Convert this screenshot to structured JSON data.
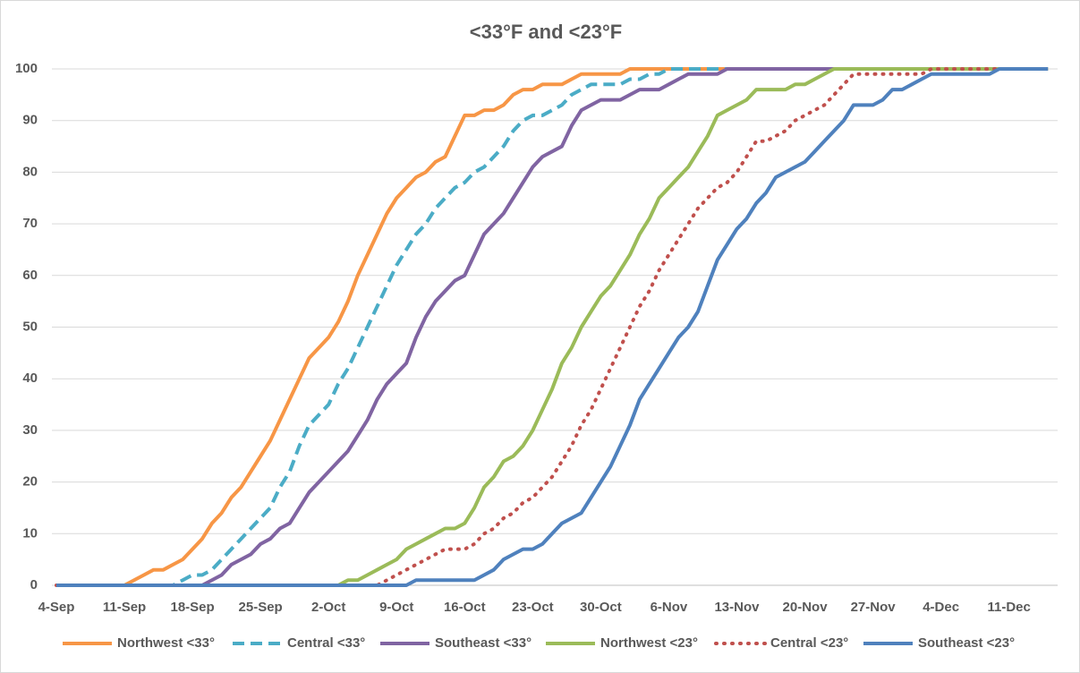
{
  "chart_data": {
    "type": "line",
    "title": "<33°F and <23°F",
    "categories": [
      "4-Sep",
      null,
      null,
      null,
      null,
      null,
      null,
      "11-Sep",
      null,
      null,
      null,
      null,
      null,
      null,
      "18-Sep",
      null,
      null,
      null,
      null,
      null,
      null,
      "25-Sep",
      null,
      null,
      null,
      null,
      null,
      null,
      "2-Oct",
      null,
      null,
      null,
      null,
      null,
      null,
      "9-Oct",
      null,
      null,
      null,
      null,
      null,
      null,
      "16-Oct",
      null,
      null,
      null,
      null,
      null,
      null,
      "23-Oct",
      null,
      null,
      null,
      null,
      null,
      null,
      "30-Oct",
      null,
      null,
      null,
      null,
      null,
      null,
      "6-Nov",
      null,
      null,
      null,
      null,
      null,
      null,
      "13-Nov",
      null,
      null,
      null,
      null,
      null,
      null,
      "20-Nov",
      null,
      null,
      null,
      null,
      null,
      null,
      "27-Nov",
      null,
      null,
      null,
      null,
      null,
      null,
      "4-Dec",
      null,
      null,
      null,
      null,
      null,
      null,
      "11-Dec",
      null,
      null,
      null,
      null
    ],
    "series": [
      {
        "name": "Northwest <33°",
        "color": "#f79646",
        "dash": "solid",
        "values": [
          0,
          0,
          0,
          0,
          0,
          0,
          0,
          0,
          1,
          2,
          3,
          3,
          4,
          5,
          7,
          9,
          12,
          14,
          17,
          19,
          22,
          25,
          28,
          32,
          36,
          40,
          44,
          46,
          48,
          51,
          55,
          60,
          64,
          68,
          72,
          75,
          77,
          79,
          80,
          82,
          83,
          87,
          91,
          91,
          92,
          92,
          93,
          95,
          96,
          96,
          97,
          97,
          97,
          98,
          99,
          99,
          99,
          99,
          99,
          100,
          100,
          100,
          100,
          100,
          100,
          100,
          100,
          100,
          100,
          100,
          100,
          100,
          100,
          100,
          100,
          100,
          100,
          100,
          100,
          100,
          100,
          100,
          100,
          100,
          100,
          100,
          100,
          100,
          100,
          100,
          100,
          100,
          100,
          100,
          100,
          100,
          100,
          100,
          100,
          100,
          100,
          100,
          100
        ]
      },
      {
        "name": "Central <33°",
        "color": "#4bacc6",
        "dash": "dashed",
        "values": [
          0,
          0,
          0,
          0,
          0,
          0,
          0,
          0,
          0,
          0,
          0,
          0,
          0,
          1,
          2,
          2,
          3,
          5,
          7,
          9,
          11,
          13,
          15,
          19,
          22,
          27,
          31,
          33,
          35,
          39,
          42,
          46,
          50,
          54,
          58,
          62,
          65,
          68,
          70,
          73,
          75,
          77,
          78,
          80,
          81,
          83,
          85,
          88,
          90,
          91,
          91,
          92,
          93,
          95,
          96,
          97,
          97,
          97,
          97,
          98,
          98,
          99,
          99,
          100,
          100,
          100,
          100,
          100,
          100,
          100,
          100,
          100,
          100,
          100,
          100,
          100,
          100,
          100,
          100,
          100,
          100,
          100,
          100,
          100,
          100,
          100,
          100,
          100,
          100,
          100,
          100,
          100,
          100,
          100,
          100,
          100,
          100,
          100,
          100,
          100,
          100,
          100,
          100
        ]
      },
      {
        "name": "Southeast <33°",
        "color": "#8064a2",
        "dash": "solid",
        "values": [
          0,
          0,
          0,
          0,
          0,
          0,
          0,
          0,
          0,
          0,
          0,
          0,
          0,
          0,
          0,
          0,
          1,
          2,
          4,
          5,
          6,
          8,
          9,
          11,
          12,
          15,
          18,
          20,
          22,
          24,
          26,
          29,
          32,
          36,
          39,
          41,
          43,
          48,
          52,
          55,
          57,
          59,
          60,
          64,
          68,
          70,
          72,
          75,
          78,
          81,
          83,
          84,
          85,
          89,
          92,
          93,
          94,
          94,
          94,
          95,
          96,
          96,
          96,
          97,
          98,
          99,
          99,
          99,
          99,
          100,
          100,
          100,
          100,
          100,
          100,
          100,
          100,
          100,
          100,
          100,
          100,
          100,
          100,
          100,
          100,
          100,
          100,
          100,
          100,
          100,
          100,
          100,
          100,
          100,
          100,
          100,
          100,
          100,
          100,
          100,
          100,
          100,
          100
        ]
      },
      {
        "name": "Northwest <23°",
        "color": "#9bbb59",
        "dash": "solid",
        "values": [
          0,
          0,
          0,
          0,
          0,
          0,
          0,
          0,
          0,
          0,
          0,
          0,
          0,
          0,
          0,
          0,
          0,
          0,
          0,
          0,
          0,
          0,
          0,
          0,
          0,
          0,
          0,
          0,
          0,
          0,
          1,
          1,
          2,
          3,
          4,
          5,
          7,
          8,
          9,
          10,
          11,
          11,
          12,
          15,
          19,
          21,
          24,
          25,
          27,
          30,
          34,
          38,
          43,
          46,
          50,
          53,
          56,
          58,
          61,
          64,
          68,
          71,
          75,
          77,
          79,
          81,
          84,
          87,
          91,
          92,
          93,
          94,
          96,
          96,
          96,
          96,
          97,
          97,
          98,
          99,
          100,
          100,
          100,
          100,
          100,
          100,
          100,
          100,
          100,
          100,
          100,
          100,
          100,
          100,
          100,
          100,
          100,
          100,
          100,
          100,
          100,
          100,
          100
        ]
      },
      {
        "name": "Central <23°",
        "color": "#c0504d",
        "dash": "dotted",
        "values": [
          0,
          0,
          0,
          0,
          0,
          0,
          0,
          0,
          0,
          0,
          0,
          0,
          0,
          0,
          0,
          0,
          0,
          0,
          0,
          0,
          0,
          0,
          0,
          0,
          0,
          0,
          0,
          0,
          0,
          0,
          0,
          0,
          0,
          0,
          1,
          2,
          3,
          4,
          5,
          6,
          7,
          7,
          7,
          8,
          10,
          11,
          13,
          14,
          16,
          17,
          19,
          21,
          24,
          27,
          31,
          34,
          38,
          42,
          46,
          50,
          54,
          57,
          61,
          64,
          67,
          70,
          73,
          75,
          77,
          78,
          80,
          83,
          86,
          86,
          87,
          88,
          90,
          91,
          92,
          93,
          95,
          97,
          99,
          99,
          99,
          99,
          99,
          99,
          99,
          99,
          100,
          100,
          100,
          100,
          100,
          100,
          100,
          100,
          100,
          100,
          100,
          100,
          100
        ]
      },
      {
        "name": "Southeast <23°",
        "color": "#4f81bd",
        "dash": "solid",
        "values": [
          0,
          0,
          0,
          0,
          0,
          0,
          0,
          0,
          0,
          0,
          0,
          0,
          0,
          0,
          0,
          0,
          0,
          0,
          0,
          0,
          0,
          0,
          0,
          0,
          0,
          0,
          0,
          0,
          0,
          0,
          0,
          0,
          0,
          0,
          0,
          0,
          0,
          1,
          1,
          1,
          1,
          1,
          1,
          1,
          2,
          3,
          5,
          6,
          7,
          7,
          8,
          10,
          12,
          13,
          14,
          17,
          20,
          23,
          27,
          31,
          36,
          39,
          42,
          45,
          48,
          50,
          53,
          58,
          63,
          66,
          69,
          71,
          74,
          76,
          79,
          80,
          81,
          82,
          84,
          86,
          88,
          90,
          93,
          93,
          93,
          94,
          96,
          96,
          97,
          98,
          99,
          99,
          99,
          99,
          99,
          99,
          99,
          100,
          100,
          100,
          100,
          100,
          100
        ]
      }
    ],
    "ylim": [
      0,
      100
    ],
    "yticks": [
      0,
      10,
      20,
      30,
      40,
      50,
      60,
      70,
      80,
      90,
      100
    ],
    "grid": true,
    "legend": "bottom"
  }
}
